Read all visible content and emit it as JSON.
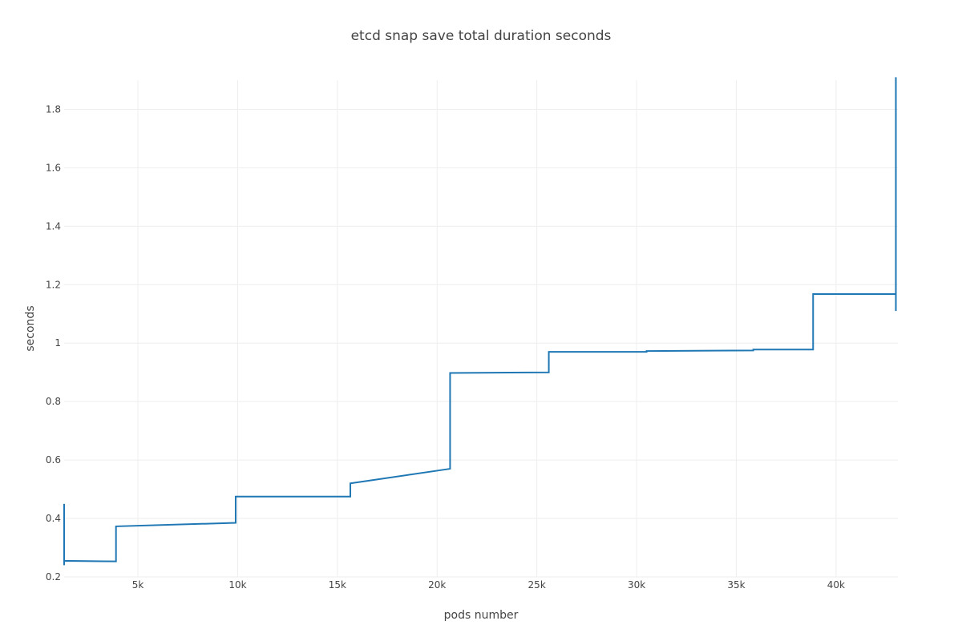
{
  "chart_data": {
    "type": "line",
    "line_shape": "step",
    "title": "etcd snap save total duration seconds",
    "xlabel": "pods number",
    "ylabel": "seconds",
    "xlim": [
      1300,
      43100
    ],
    "ylim": [
      0.2,
      1.9
    ],
    "x_ticks": [
      5000,
      10000,
      15000,
      20000,
      25000,
      30000,
      35000,
      40000
    ],
    "x_tick_labels": [
      "5k",
      "10k",
      "15k",
      "20k",
      "25k",
      "30k",
      "35k",
      "40k"
    ],
    "y_ticks": [
      0.2,
      0.4,
      0.6,
      0.8,
      1.0,
      1.2,
      1.4,
      1.6,
      1.8
    ],
    "y_tick_labels": [
      "0.2",
      "0.4",
      "0.6",
      "0.8",
      "1",
      "1.2",
      "1.4",
      "1.6",
      "1.8"
    ],
    "grid": true,
    "legend": "none",
    "series": [
      {
        "color": "#1f77b4",
        "points": [
          [
            1300,
            0.45
          ],
          [
            1300,
            0.24
          ],
          [
            1300,
            0.255
          ],
          [
            3900,
            0.253
          ],
          [
            3900,
            0.373
          ],
          [
            9900,
            0.385
          ],
          [
            9900,
            0.475
          ],
          [
            15650,
            0.475
          ],
          [
            15650,
            0.52
          ],
          [
            20650,
            0.57
          ],
          [
            20650,
            0.898
          ],
          [
            25600,
            0.9
          ],
          [
            25600,
            0.97
          ],
          [
            30500,
            0.97
          ],
          [
            30500,
            0.973
          ],
          [
            35850,
            0.975
          ],
          [
            35850,
            0.978
          ],
          [
            38850,
            0.978
          ],
          [
            38850,
            1.168
          ],
          [
            43000,
            1.168
          ],
          [
            43000,
            1.11
          ],
          [
            43000,
            1.91
          ],
          [
            43000,
            1.81
          ]
        ]
      }
    ]
  }
}
